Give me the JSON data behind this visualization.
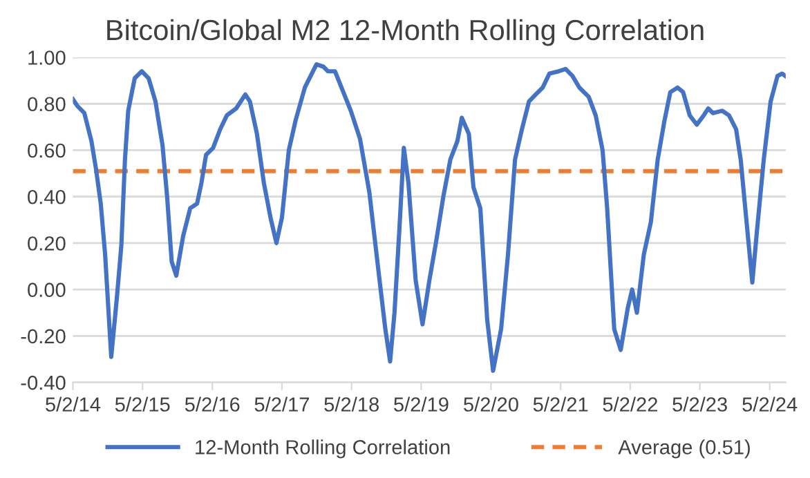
{
  "chart_data": {
    "type": "line",
    "title": "Bitcoin/Global M2 12-Month Rolling Correlation",
    "x": [
      "2014-05-02",
      "2014-05-26",
      "2014-07-01",
      "2014-08-07",
      "2014-08-31",
      "2014-09-25",
      "2014-10-18",
      "2014-11-19",
      "2014-12-18",
      "2015-01-11",
      "2015-01-30",
      "2015-02-16",
      "2015-03-22",
      "2015-04-28",
      "2015-06-03",
      "2015-07-09",
      "2015-08-15",
      "2015-09-08",
      "2015-10-02",
      "2015-10-26",
      "2015-12-01",
      "2016-01-07",
      "2016-02-12",
      "2016-03-06",
      "2016-03-30",
      "2016-05-06",
      "2016-06-12",
      "2016-07-17",
      "2016-09-04",
      "2016-10-22",
      "2016-11-15",
      "2016-12-22",
      "2017-01-27",
      "2017-03-03",
      "2017-04-03",
      "2017-05-02",
      "2017-06-07",
      "2017-07-13",
      "2017-08-30",
      "2017-10-30",
      "2017-12-05",
      "2017-12-29",
      "2018-02-04",
      "2018-03-10",
      "2018-04-28",
      "2018-06-15",
      "2018-08-03",
      "2018-09-20",
      "2018-10-26",
      "2018-11-20",
      "2018-12-13",
      "2019-01-07",
      "2019-01-31",
      "2019-02-24",
      "2019-04-03",
      "2019-05-09",
      "2019-06-14",
      "2019-07-20",
      "2019-08-26",
      "2019-10-02",
      "2019-11-08",
      "2019-12-01",
      "2020-01-07",
      "2020-01-31",
      "2020-03-07",
      "2020-04-12",
      "2020-05-13",
      "2020-06-24",
      "2020-07-30",
      "2020-09-05",
      "2020-10-11",
      "2020-11-17",
      "2020-12-22",
      "2021-01-28",
      "2021-03-04",
      "2021-04-22",
      "2021-05-28",
      "2021-07-03",
      "2021-08-08",
      "2021-09-26",
      "2021-11-02",
      "2021-12-08",
      "2022-01-01",
      "2022-02-07",
      "2022-03-13",
      "2022-04-19",
      "2022-05-12",
      "2022-06-06",
      "2022-07-12",
      "2022-08-18",
      "2022-09-23",
      "2022-10-29",
      "2022-11-28",
      "2023-01-05",
      "2023-02-03",
      "2023-03-10",
      "2023-04-16",
      "2023-05-22",
      "2023-06-15",
      "2023-07-09",
      "2023-08-27",
      "2023-10-02",
      "2023-11-08",
      "2023-12-02",
      "2023-12-26",
      "2024-02-01",
      "2024-02-25",
      "2024-04-01",
      "2024-05-07",
      "2024-06-12",
      "2024-07-06",
      "2024-07-23"
    ],
    "series": [
      {
        "name": "12-Month Rolling Correlation",
        "color": "#4472c4",
        "values": [
          0.82,
          0.79,
          0.76,
          0.64,
          0.52,
          0.37,
          0.15,
          -0.29,
          -0.04,
          0.19,
          0.56,
          0.77,
          0.91,
          0.94,
          0.91,
          0.81,
          0.62,
          0.4,
          0.12,
          0.06,
          0.23,
          0.35,
          0.37,
          0.46,
          0.58,
          0.61,
          0.69,
          0.75,
          0.78,
          0.84,
          0.81,
          0.67,
          0.46,
          0.31,
          0.2,
          0.31,
          0.6,
          0.73,
          0.87,
          0.97,
          0.96,
          0.94,
          0.94,
          0.87,
          0.77,
          0.65,
          0.42,
          0.08,
          -0.17,
          -0.31,
          -0.1,
          0.25,
          0.61,
          0.46,
          0.04,
          -0.15,
          0.04,
          0.21,
          0.4,
          0.56,
          0.64,
          0.74,
          0.67,
          0.44,
          0.35,
          -0.13,
          -0.35,
          -0.17,
          0.15,
          0.56,
          0.69,
          0.81,
          0.84,
          0.87,
          0.93,
          0.94,
          0.95,
          0.92,
          0.87,
          0.83,
          0.75,
          0.6,
          0.35,
          -0.17,
          -0.26,
          -0.08,
          0.0,
          -0.1,
          0.15,
          0.29,
          0.56,
          0.73,
          0.85,
          0.87,
          0.85,
          0.75,
          0.71,
          0.75,
          0.78,
          0.76,
          0.77,
          0.75,
          0.69,
          0.56,
          0.35,
          0.03,
          0.25,
          0.56,
          0.81,
          0.92,
          0.93,
          0.92
        ]
      }
    ],
    "ref_lines": [
      {
        "axis": "y",
        "value": 0.51,
        "label": "Average (0.51)",
        "color": "#ed7d31",
        "line_style": "dashed"
      }
    ],
    "xlim": [
      "2014-05-02",
      "2024-07-25"
    ],
    "xticks": [
      {
        "value": "2014-05-02",
        "label": "5/2/14"
      },
      {
        "value": "2015-05-02",
        "label": "5/2/15"
      },
      {
        "value": "2016-05-02",
        "label": "5/2/16"
      },
      {
        "value": "2017-05-02",
        "label": "5/2/17"
      },
      {
        "value": "2018-05-02",
        "label": "5/2/18"
      },
      {
        "value": "2019-05-02",
        "label": "5/2/19"
      },
      {
        "value": "2020-05-02",
        "label": "5/2/20"
      },
      {
        "value": "2021-05-02",
        "label": "5/2/21"
      },
      {
        "value": "2022-05-02",
        "label": "5/2/22"
      },
      {
        "value": "2023-05-02",
        "label": "5/2/23"
      },
      {
        "value": "2024-05-02",
        "label": "5/2/24"
      }
    ],
    "ylim": [
      -0.4,
      1.0
    ],
    "yticks": [
      {
        "value": -0.4,
        "label": "-0.40"
      },
      {
        "value": -0.2,
        "label": "-0.20"
      },
      {
        "value": 0,
        "label": "0.00"
      },
      {
        "value": 0.2,
        "label": "0.20"
      },
      {
        "value": 0.4,
        "label": "0.40"
      },
      {
        "value": 0.6,
        "label": "0.60"
      },
      {
        "value": 0.8,
        "label": "0.80"
      },
      {
        "value": 1.0,
        "label": "1.00"
      }
    ],
    "grid": "y",
    "legend": "bottom",
    "marker": "none",
    "line_style": "solid"
  }
}
